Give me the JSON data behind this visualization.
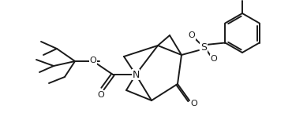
{
  "bg_color": "#ffffff",
  "line_color": "#1a1a1a",
  "line_width": 1.4,
  "figsize": [
    3.7,
    1.72
  ],
  "dpi": 100,
  "N_label": "N",
  "S_label": "S",
  "O_label": "O"
}
